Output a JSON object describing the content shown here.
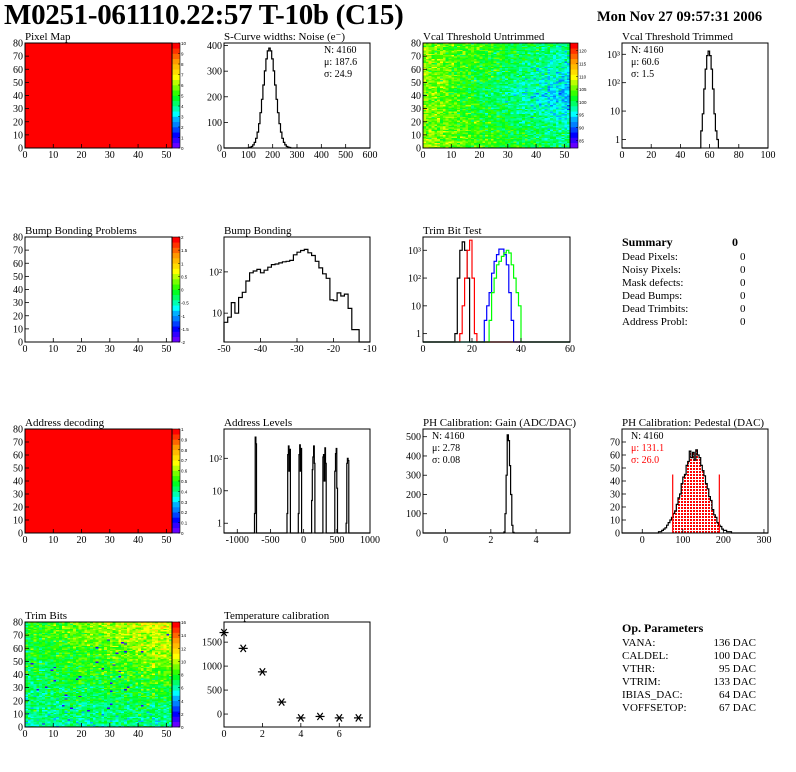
{
  "header": {
    "title": "M0251-061110.22:57 T-10b (C15)",
    "timestamp": "Mon Nov 27 09:57:31 2006"
  },
  "palette": [
    "#6600ff",
    "#3300ff",
    "#0000ff",
    "#0040ff",
    "#0080ff",
    "#00b0ff",
    "#00ffff",
    "#00ffb0",
    "#00ff66",
    "#00ff22",
    "#33ff00",
    "#77ff00",
    "#bbff00",
    "#ffff00",
    "#ffdd00",
    "#ffbb00",
    "#ff9900",
    "#ff6600",
    "#ff3300",
    "#ff0000"
  ],
  "chart_data": [
    {
      "type": "heatmap",
      "title": "Pixel Map",
      "xlim": [
        0,
        52
      ],
      "ylim": [
        0,
        80
      ],
      "xticks": [
        0,
        10,
        20,
        30,
        40,
        50
      ],
      "yticks": [
        0,
        10,
        20,
        30,
        40,
        50,
        60,
        70,
        80
      ],
      "zlim": [
        0,
        10
      ],
      "zticks": [
        "0",
        "1",
        "2",
        "3",
        "4",
        "5",
        "6",
        "7",
        "8",
        "9",
        "10"
      ],
      "content": "uniform",
      "uniform_value": 10
    },
    {
      "type": "histogram",
      "title": "S-Curve widths: Noise (e⁻)",
      "xlim": [
        0,
        600
      ],
      "ylim": [
        0,
        410
      ],
      "log_y": false,
      "xticks": [
        0,
        100,
        200,
        300,
        400,
        500,
        600
      ],
      "yticks": [
        0,
        100,
        200,
        300,
        400
      ],
      "series": [
        {
          "x_start": 100,
          "bin_width": 6,
          "color": "#000000",
          "values": [
            1,
            3,
            6,
            12,
            22,
            38,
            62,
            95,
            138,
            190,
            246,
            301,
            348,
            379,
            390,
            379,
            348,
            301,
            246,
            190,
            138,
            95,
            62,
            38,
            22,
            12,
            6,
            3,
            2
          ]
        }
      ],
      "stats": [
        {
          "text": "N: 4160",
          "color": "#000000"
        },
        {
          "text": "μ: 187.6",
          "color": "#000000"
        },
        {
          "text": "σ: 24.9",
          "color": "#000000"
        }
      ]
    },
    {
      "type": "heatmap",
      "title": "Vcal Threshold Untrimmed",
      "xlim": [
        0,
        52
      ],
      "ylim": [
        0,
        80
      ],
      "xticks": [
        0,
        10,
        20,
        30,
        40,
        50
      ],
      "yticks": [
        0,
        10,
        20,
        30,
        40,
        50,
        60,
        70,
        80
      ],
      "zlim": [
        82,
        123
      ],
      "zticks": [
        "85",
        "90",
        "95",
        "100",
        "105",
        "110",
        "115",
        "120"
      ],
      "zvalues": [
        85,
        90,
        95,
        100,
        105,
        110,
        115,
        120
      ],
      "content": "pixel-values"
    },
    {
      "type": "histogram",
      "title": "Vcal Threshold Trimmed",
      "xlim": [
        0,
        100
      ],
      "ylim": [
        0.5,
        2500
      ],
      "log_y": true,
      "xticks": [
        0,
        20,
        40,
        60,
        80,
        100
      ],
      "yticks": [
        1,
        10,
        100,
        1000
      ],
      "ytick_labels": [
        "1",
        "10",
        "10²",
        "10³"
      ],
      "series": [
        {
          "x_start": 54,
          "bin_width": 1,
          "color": "#000000",
          "values": [
            2,
            8,
            60,
            300,
            900,
            1300,
            900,
            300,
            60,
            8,
            2,
            1
          ]
        }
      ],
      "stats": [
        {
          "text": "N: 4160",
          "color": "#000000"
        },
        {
          "text": "μ: 60.6",
          "color": "#000000"
        },
        {
          "text": "σ:  1.5",
          "color": "#000000"
        }
      ]
    },
    {
      "type": "heatmap",
      "title": "Bump Bonding Problems",
      "xlim": [
        0,
        52
      ],
      "ylim": [
        0,
        80
      ],
      "xticks": [
        0,
        10,
        20,
        30,
        40,
        50
      ],
      "yticks": [
        0,
        10,
        20,
        30,
        40,
        50,
        60,
        70,
        80
      ],
      "zlim": [
        -2,
        2
      ],
      "zticks": [
        "-2",
        "-1.5",
        "-1",
        "-0.5",
        "0",
        "0.5",
        "1",
        "1.5",
        "2"
      ],
      "content": "empty"
    },
    {
      "type": "histogram",
      "title": "Bump Bonding",
      "xlim": [
        -50,
        -10
      ],
      "ylim": [
        2,
        700
      ],
      "log_y": true,
      "xticks": [
        -50,
        -40,
        -30,
        -20,
        -10
      ],
      "yticks": [
        10,
        100
      ],
      "ytick_labels": [
        "10",
        "10²"
      ],
      "series": [
        {
          "x_start": -50,
          "bin_width": 1,
          "color": "#000000",
          "values": [
            6,
            8,
            18,
            10,
            24,
            32,
            60,
            95,
            105,
            115,
            95,
            110,
            130,
            150,
            155,
            165,
            175,
            180,
            190,
            260,
            300,
            330,
            350,
            290,
            250,
            180,
            125,
            90,
            70,
            21,
            20,
            31,
            26,
            29,
            13,
            4,
            4
          ]
        }
      ]
    },
    {
      "type": "histogram",
      "title": "Trim Bit Test",
      "xlim": [
        0,
        60
      ],
      "ylim": [
        0.5,
        3000
      ],
      "log_y": true,
      "xticks": [
        0,
        20,
        40,
        60
      ],
      "yticks": [
        1,
        10,
        100,
        1000
      ],
      "ytick_labels": [
        "1",
        "10",
        "10²",
        "10³"
      ],
      "series": [
        {
          "x_start": 13,
          "bin_width": 1,
          "color": "#000000",
          "values": [
            1,
            100,
            1000,
            2000,
            1000,
            100
          ]
        },
        {
          "x_start": 15,
          "bin_width": 1,
          "color": "#ff0000",
          "values": [
            1,
            10,
            100,
            1000,
            2300,
            100,
            1
          ]
        },
        {
          "x_start": 25,
          "bin_width": 1,
          "color": "#0000ff",
          "values": [
            3,
            10,
            30,
            150,
            400,
            700,
            1100,
            1100,
            700,
            300,
            30,
            3
          ]
        },
        {
          "x_start": 27,
          "bin_width": 1,
          "color": "#00ff00",
          "values": [
            3,
            30,
            100,
            300,
            400,
            600,
            800,
            1000,
            800,
            300,
            100,
            30,
            10
          ]
        }
      ]
    },
    {
      "type": "heatmap",
      "title": "Address decoding",
      "xlim": [
        0,
        52
      ],
      "ylim": [
        0,
        80
      ],
      "xticks": [
        0,
        10,
        20,
        30,
        40,
        50
      ],
      "yticks": [
        0,
        10,
        20,
        30,
        40,
        50,
        60,
        70,
        80
      ],
      "zlim": [
        0,
        1
      ],
      "zticks": [
        "0",
        "0.1",
        "0.2",
        "0.3",
        "0.4",
        "0.5",
        "0.6",
        "0.7",
        "0.8",
        "0.9",
        "1"
      ],
      "content": "uniform",
      "uniform_value": 1
    },
    {
      "type": "histogram",
      "title": "Address Levels",
      "xlim": [
        -1200,
        1000
      ],
      "ylim": [
        0.5,
        800
      ],
      "log_y": true,
      "xticks": [
        -1000,
        -500,
        0,
        500,
        1000
      ],
      "yticks": [
        1,
        10,
        100
      ],
      "ytick_labels": [
        "1",
        "10",
        "10²"
      ],
      "series": [
        {
          "bin_width": 10,
          "color": "#000000",
          "bins": [
            [
              -740,
              2
            ],
            [
              -730,
              450
            ],
            [
              -720,
              280
            ],
            [
              -250,
              2
            ],
            [
              -240,
              130
            ],
            [
              -230,
              240
            ],
            [
              -220,
              40
            ],
            [
              -210,
              190
            ],
            [
              -80,
              2
            ],
            [
              -70,
              130
            ],
            [
              -60,
              260
            ],
            [
              -50,
              40
            ],
            [
              -40,
              200
            ],
            [
              120,
              5
            ],
            [
              130,
              45
            ],
            [
              140,
              110
            ],
            [
              150,
              240
            ],
            [
              160,
              70
            ],
            [
              290,
              110
            ],
            [
              300,
              130
            ],
            [
              310,
              20
            ],
            [
              320,
              210
            ],
            [
              330,
              70
            ],
            [
              470,
              40
            ],
            [
              480,
              140
            ],
            [
              490,
              200
            ],
            [
              500,
              12
            ],
            [
              640,
              1
            ],
            [
              650,
              70
            ],
            [
              660,
              100
            ],
            [
              670,
              85
            ]
          ]
        }
      ]
    },
    {
      "type": "histogram",
      "title": "PH Calibration: Gain (ADC/DAC)",
      "xlim": [
        -1,
        5.5
      ],
      "ylim": [
        0,
        540
      ],
      "log_y": false,
      "xticks": [
        0,
        2,
        4
      ],
      "yticks": [
        0,
        100,
        200,
        300,
        400,
        500
      ],
      "series": [
        {
          "x_start": 2.575,
          "bin_width": 0.05,
          "color": "#000000",
          "values": [
            5,
            100,
            300,
            510,
            480,
            350,
            200,
            40,
            3
          ]
        }
      ],
      "stats": [
        {
          "text": "N: 4160",
          "color": "#000000"
        },
        {
          "text": "μ: 2.78",
          "color": "#000000"
        },
        {
          "text": "σ: 0.08",
          "color": "#000000"
        }
      ]
    },
    {
      "type": "histogram",
      "title": "PH Calibration: Pedestal (DAC)",
      "xlim": [
        -50,
        310
      ],
      "ylim": [
        0,
        80
      ],
      "log_y": false,
      "xticks": [
        0,
        100,
        200,
        300
      ],
      "yticks": [
        0,
        10,
        20,
        30,
        40,
        50,
        60,
        70
      ],
      "series": [
        {
          "x_start": 40,
          "bin_width": 4,
          "color": "#000000",
          "values": [
            1,
            1,
            2,
            3,
            4,
            6,
            8,
            10,
            12,
            15,
            17,
            22,
            27,
            30,
            38,
            43,
            45,
            52,
            55,
            63,
            58,
            62,
            56,
            64,
            60,
            58,
            52,
            48,
            44,
            38,
            34,
            28,
            25,
            18,
            14,
            12,
            8,
            6,
            5,
            3,
            2,
            2,
            1,
            1,
            1,
            0
          ]
        }
      ],
      "fit_range": [
        75,
        190
      ],
      "fit_marker_height": 45,
      "fit_color": "#ff0000",
      "stats": [
        {
          "text": "N: 4160",
          "color": "#000000"
        },
        {
          "text": "μ: 131.1",
          "color": "#ff0000"
        },
        {
          "text": "σ: 26.0",
          "color": "#ff0000"
        }
      ]
    },
    {
      "type": "heatmap",
      "title": "Trim Bits",
      "xlim": [
        0,
        52
      ],
      "ylim": [
        0,
        80
      ],
      "xticks": [
        0,
        10,
        20,
        30,
        40,
        50
      ],
      "yticks": [
        0,
        10,
        20,
        30,
        40,
        50,
        60,
        70,
        80
      ],
      "zlim": [
        0,
        16
      ],
      "zticks": [
        "0",
        "2",
        "4",
        "6",
        "8",
        "10",
        "12",
        "14",
        "16"
      ],
      "content": "pixel-values"
    },
    {
      "type": "scatter",
      "title": "Temperature calibration",
      "xlim": [
        0,
        7.6
      ],
      "ylim": [
        -270,
        1920
      ],
      "xticks": [
        0,
        2,
        4,
        6
      ],
      "yticks": [
        0,
        500,
        1000,
        1500
      ],
      "marker": "asterisk",
      "x": [
        0,
        1,
        2,
        3,
        4,
        5,
        6,
        7
      ],
      "y": [
        1700,
        1370,
        880,
        250,
        -80,
        -50,
        -80,
        -80
      ]
    }
  ],
  "summary": {
    "title": "Summary",
    "total": "0",
    "items": [
      {
        "label": "Dead Pixels:",
        "value": "0"
      },
      {
        "label": "Noisy Pixels:",
        "value": "0"
      },
      {
        "label": "Mask defects:",
        "value": "0"
      },
      {
        "label": "Dead Bumps:",
        "value": "0"
      },
      {
        "label": "Dead Trimbits:",
        "value": "0"
      },
      {
        "label": "Address Probl:",
        "value": "0"
      }
    ]
  },
  "op_params": {
    "title": "Op. Parameters",
    "items": [
      {
        "label": "VANA:",
        "value": "136 DAC"
      },
      {
        "label": "CALDEL:",
        "value": "100 DAC"
      },
      {
        "label": "VTHR:",
        "value": "95 DAC"
      },
      {
        "label": "VTRIM:",
        "value": "133 DAC"
      },
      {
        "label": "IBIAS_DAC:",
        "value": "64 DAC"
      },
      {
        "label": "VOFFSETOP:",
        "value": "67 DAC"
      }
    ]
  }
}
